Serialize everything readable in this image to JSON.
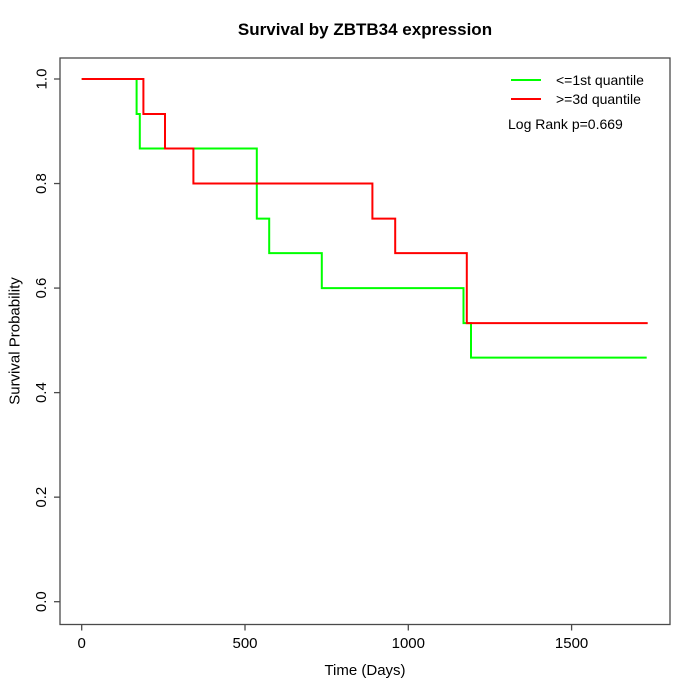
{
  "chart_data": {
    "type": "line",
    "subtype": "kaplan-meier-step",
    "title": "Survival by ZBTB34 expression",
    "xlabel": "Time (Days)",
    "ylabel": "Survival Probability",
    "xticks": [
      0,
      500,
      1000,
      1500
    ],
    "yticks": [
      0,
      0.2,
      0.4,
      0.6,
      0.8,
      1.0
    ],
    "ytick_labels": [
      "0.0",
      "0.2",
      "0.4",
      "0.6",
      "0.8",
      "1.0"
    ],
    "xlim": [
      0,
      1733
    ],
    "ylim": [
      0,
      1
    ],
    "grid": false,
    "legend_position": "top-right-inside",
    "annotation": "Log Rank p=0.669",
    "series": [
      {
        "name": "<=1st quantile",
        "color": "#00ff00",
        "steps": [
          [
            0,
            1.0
          ],
          [
            168,
            0.933
          ],
          [
            178,
            0.867
          ],
          [
            536,
            0.733
          ],
          [
            574,
            0.667
          ],
          [
            735,
            0.6
          ],
          [
            1169,
            0.533
          ],
          [
            1192,
            0.467
          ]
        ],
        "end_time": 1730
      },
      {
        "name": ">=3d quantile",
        "color": "#ff0000",
        "steps": [
          [
            0,
            1.0
          ],
          [
            189,
            0.933
          ],
          [
            255,
            0.867
          ],
          [
            342,
            0.8
          ],
          [
            890,
            0.733
          ],
          [
            960,
            0.667
          ],
          [
            1179,
            0.533
          ]
        ],
        "end_time": 1733
      }
    ]
  },
  "colors": {
    "axis": "#4a4a4a",
    "text": "#000000",
    "background": "#ffffff"
  }
}
